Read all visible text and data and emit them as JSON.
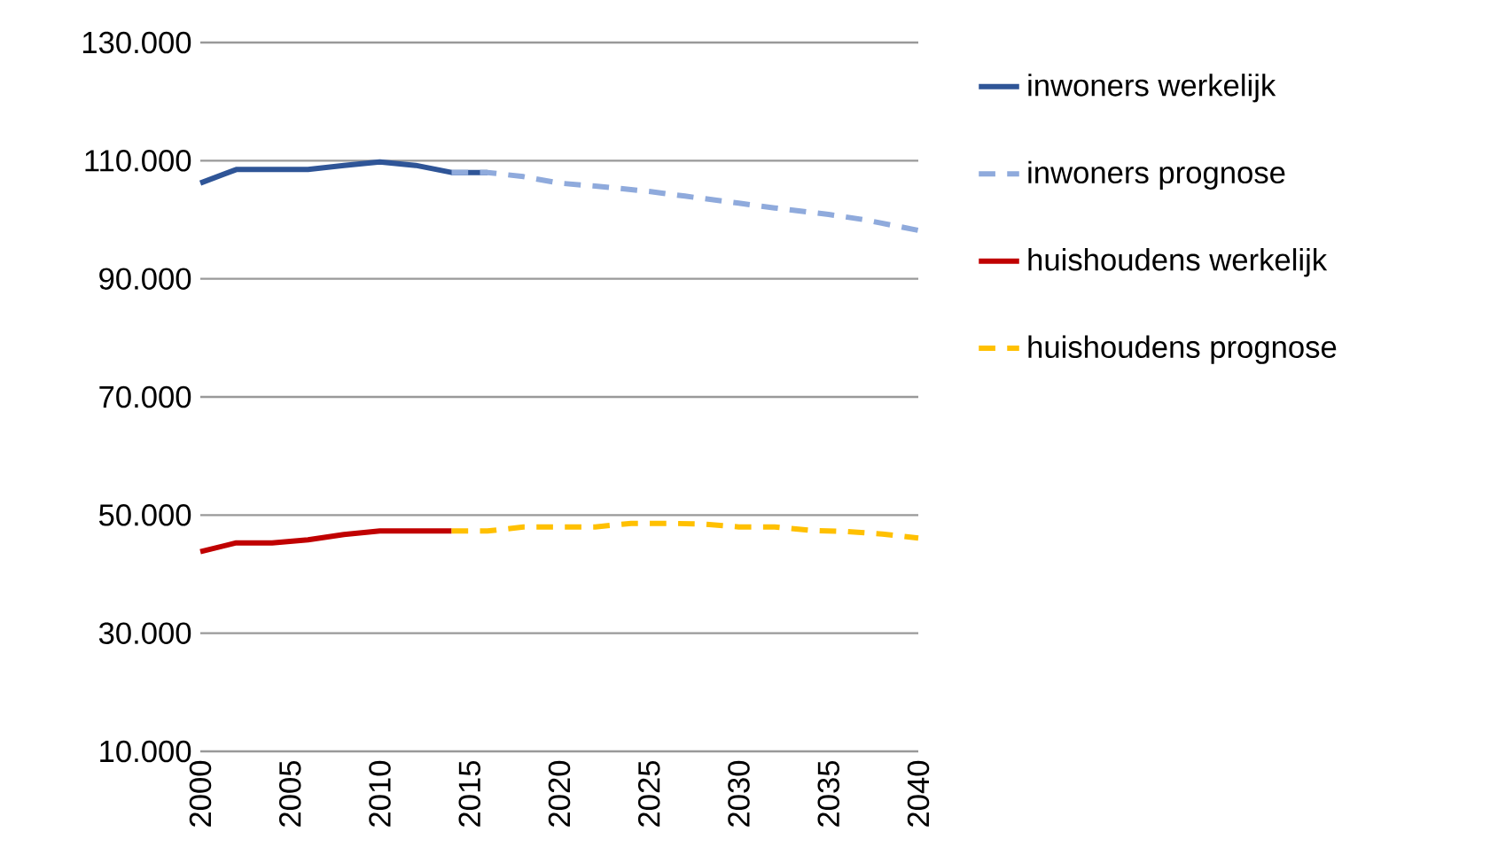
{
  "chart_data": {
    "type": "line",
    "ylim": [
      10000,
      130000
    ],
    "xlim": [
      2000,
      2040
    ],
    "yticks": [
      {
        "value": 10000,
        "label": "10.000"
      },
      {
        "value": 30000,
        "label": "30.000"
      },
      {
        "value": 50000,
        "label": "50.000"
      },
      {
        "value": 70000,
        "label": "70.000"
      },
      {
        "value": 90000,
        "label": "90.000"
      },
      {
        "value": 110000,
        "label": "110.000"
      },
      {
        "value": 130000,
        "label": "130.000"
      }
    ],
    "xticks": [
      2000,
      2005,
      2010,
      2015,
      2020,
      2025,
      2030,
      2035,
      2040
    ],
    "grid": "y",
    "legend": "right",
    "series": [
      {
        "name": "inwoners werkelijk",
        "color": "#2f5597",
        "line_style": "solid",
        "x": [
          2000,
          2002,
          2004,
          2006,
          2008,
          2010,
          2012,
          2014,
          2016
        ],
        "values": [
          106200,
          108500,
          108500,
          108500,
          109200,
          109800,
          109200,
          108000,
          108000
        ]
      },
      {
        "name": "inwoners prognose",
        "color": "#8faadc",
        "line_style": "dashed",
        "x": [
          2014,
          2016,
          2018,
          2020,
          2022,
          2025,
          2027,
          2030,
          2032,
          2035,
          2037,
          2040
        ],
        "values": [
          108000,
          108000,
          107300,
          106200,
          105700,
          104800,
          104000,
          102800,
          102000,
          100900,
          100000,
          98200
        ]
      },
      {
        "name": "huishoudens werkelijk",
        "color": "#c00000",
        "line_style": "solid",
        "x": [
          2000,
          2002,
          2004,
          2006,
          2008,
          2010,
          2012,
          2014
        ],
        "values": [
          43800,
          45300,
          45300,
          45800,
          46700,
          47300,
          47300,
          47300
        ]
      },
      {
        "name": "huishoudens prognose",
        "color": "#ffc000",
        "line_style": "dashed",
        "x": [
          2014,
          2016,
          2018,
          2020,
          2022,
          2024,
          2026,
          2028,
          2030,
          2032,
          2034,
          2036,
          2038,
          2040
        ],
        "values": [
          47300,
          47300,
          48000,
          48000,
          48000,
          48600,
          48600,
          48500,
          48000,
          48000,
          47400,
          47200,
          46800,
          46100
        ]
      }
    ]
  }
}
